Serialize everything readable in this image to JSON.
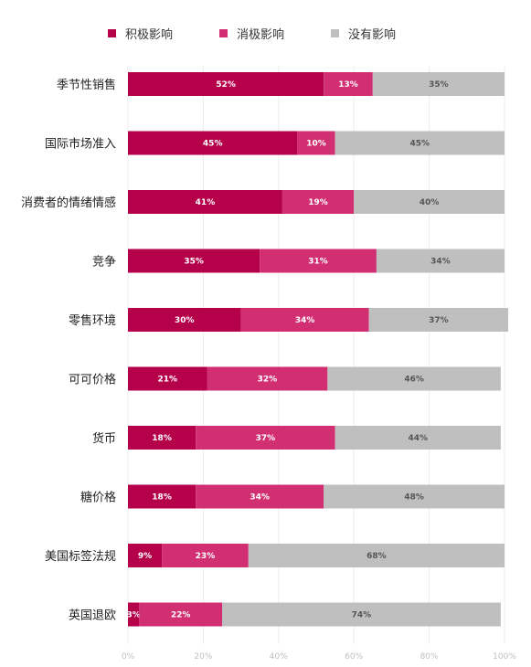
{
  "chart_data": {
    "type": "bar",
    "orientation": "horizontal",
    "stacked": true,
    "categories": [
      "季节性销售",
      "国际市场准入",
      "消费者的情绪情感",
      "竞争",
      "零售环境",
      "可可价格",
      "货币",
      "糖价格",
      "美国标签法规",
      "英国退欧"
    ],
    "series": [
      {
        "name": "积极影响",
        "color": "#b5004a",
        "values": [
          52,
          45,
          41,
          35,
          30,
          21,
          18,
          18,
          9,
          3
        ]
      },
      {
        "name": "消极影响",
        "color": "#d12f72",
        "values": [
          13,
          10,
          19,
          31,
          34,
          32,
          37,
          34,
          23,
          22
        ]
      },
      {
        "name": "没有影响",
        "color": "#bfbfbf",
        "values": [
          35,
          45,
          40,
          34,
          37,
          46,
          44,
          48,
          68,
          74
        ]
      }
    ],
    "value_labels": [
      [
        "52%",
        "13%",
        "35%"
      ],
      [
        "45%",
        "10%",
        "45%"
      ],
      [
        "41%",
        "19%",
        "40%"
      ],
      [
        "35%",
        "31%",
        "34%"
      ],
      [
        "30%",
        "34%",
        "37%"
      ],
      [
        "21%",
        "32%",
        "46%"
      ],
      [
        "18%",
        "37%",
        "44%"
      ],
      [
        "18%",
        "34%",
        "48%"
      ],
      [
        "9%",
        "23%",
        "68%"
      ],
      [
        "3%",
        "22%",
        "74%"
      ]
    ],
    "xlim": [
      0,
      100
    ],
    "x_ticks": [
      "0%",
      "20%",
      "40%",
      "60%",
      "80%",
      "100%"
    ],
    "grid": true,
    "legend_position": "top"
  }
}
